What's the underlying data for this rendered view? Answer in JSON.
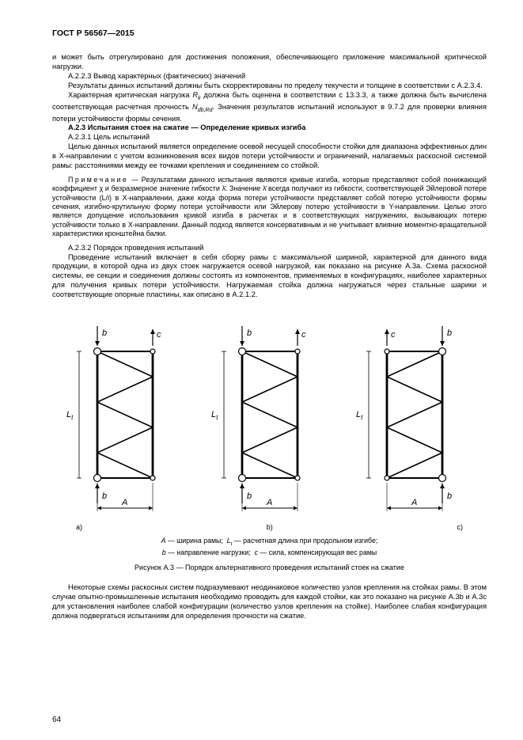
{
  "header": "ГОСТ Р 56567—2015",
  "par1": "и может быть отрегулировано для достижения положения, обеспечивающего приложение максимальной критической нагрузки.",
  "par2": "А.2.2.3 Вывод характерных (фактических) значений",
  "par3": "Результаты данных испытаний должны быть скорректированы по пределу текучести и толщине в соответствии с А.2.3.4.",
  "par4a": "Характерная критическая нагрузка ",
  "par4b": " должна быть оценена в соответствии с 13.3.3, а также должна быть вычислена соответствующая расчетная прочность ",
  "par4c": ". Значения результатов испытаний используют в 9.7.2 для проверки влияния потери устойчивости формы сечения.",
  "par5": "А.2.3 Испытания стоек на сжатие — Определение кривых изгиба",
  "par6": "А.2.3.1 Цель испытаний",
  "par7": "Целью данных испытаний является определение осевой несущей способности стойки для диапазона эффективных длин в X-направлении с учетом возникновения всех видов потери устойчивости и ограничений, налагаемых раскосной системой рамы: расстояниями между ее точками крепления и соединением со стойкой.",
  "note_label": "Примечание",
  "note_body": " — Результатами данного испытания являются кривые изгиба, которые представляют собой понижающий коэффициент χ и безразмерное значение гибкости λ̄. Значение λ̄ всегда получают из гибкости, соответствующей Эйлеровой потере устойчивости (L/i) в X-направлении, даже когда форма потери устойчивости представляет собой потерю устойчивости формы сечения, изгибно-крутильную форму потери устойчивости или Эйлерову потерю устойчивости в Y-направлении. Целью этого является допущение использования кривой изгиба в расчетах и в соответствующих нагружениях, вызывающих потерю устойчивости только в X-направлении. Данный подход является консервативным и не учитывает влияние моментно-вращательной характеристики кронштейна балки.",
  "par8": "А.2.3.2 Порядок проведения испытаний",
  "par9": "Проведение испытаний включает в себя сборку рамы с максимальной шириной, характерной для данного вида продукции, в которой одна из двух стоек нагружается осевой нагрузкой, как показано на рисунке А.3а. Схема раскосной системы, ее секции и соединения должны состоять из компонентов, применяемых в конфигурациях, наиболее характерных для получения кривых потери устойчивости. Нагружаемая стойка должна нагружаться через стальные шарики и соответствующие опорные пластины, как описано в А.2.1.2.",
  "legend_line": "A — ширина рамы;  L_t — расчетная длина при продольном изгибе;",
  "legend_line2": "b — направление нагрузки;  c — сила, компенсирующая вес рамы",
  "fig_caption": "Рисунок А.3 — Порядок альтернативного проведения испытаний стоек на сжатие",
  "par10": "Некоторые схемы раскосных систем подразумевают неодинаковое количество узлов крепления на стойках рамы. В этом случае опытно-промышленные испытания необходимо проводить для каждой стойки, как это показано на рисунке А.3b и А.3c для установления наиболее слабой конфигурации (количество узлов крепления на стойке). Наиболее слабая конфигурация должна подвергаться испытаниям для определения прочности на сжатие.",
  "lab_a": "a)",
  "lab_b": "b)",
  "lab_c": "c)",
  "pageno": "64",
  "svg": {
    "a": {
      "segments": 5,
      "flip": false
    },
    "b": {
      "segments": 5,
      "flip": false,
      "asym": true
    },
    "c": {
      "segments": 5,
      "flip": true,
      "asym": true
    }
  }
}
